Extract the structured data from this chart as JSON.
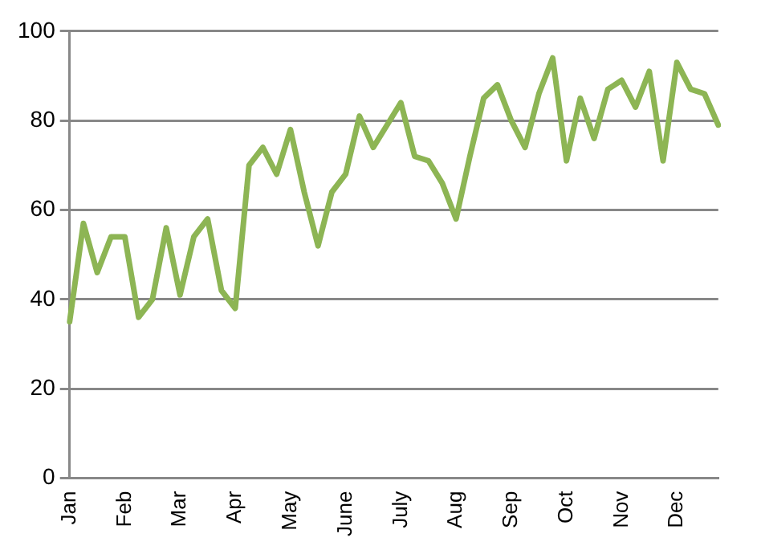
{
  "chart_data": {
    "type": "line",
    "categories": [
      "Jan",
      null,
      null,
      null,
      "Feb",
      null,
      null,
      null,
      "Mar",
      null,
      null,
      null,
      "Apr",
      null,
      null,
      null,
      "May",
      null,
      null,
      null,
      "June",
      null,
      null,
      null,
      "July",
      null,
      null,
      null,
      "Aug",
      null,
      null,
      null,
      "Sep",
      null,
      null,
      null,
      "Oct",
      null,
      null,
      null,
      "Nov",
      null,
      null,
      null,
      "Dec",
      null,
      null,
      null
    ],
    "series": [
      {
        "color": "#8db554",
        "values": [
          35,
          57,
          46,
          54,
          54,
          36,
          40,
          56,
          41,
          54,
          58,
          42,
          38,
          70,
          74,
          68,
          78,
          64,
          52,
          64,
          68,
          81,
          74,
          79,
          84,
          72,
          71,
          66,
          58,
          72,
          85,
          88,
          80,
          74,
          86,
          94,
          71,
          85,
          76,
          87,
          89,
          83,
          91,
          71,
          93,
          87,
          86,
          79
        ]
      }
    ],
    "ylim": [
      0,
      100
    ],
    "yticks": [
      0,
      20,
      40,
      60,
      80,
      100
    ],
    "grid": "y",
    "legend": false,
    "marker": "none",
    "line_style": "solid"
  }
}
